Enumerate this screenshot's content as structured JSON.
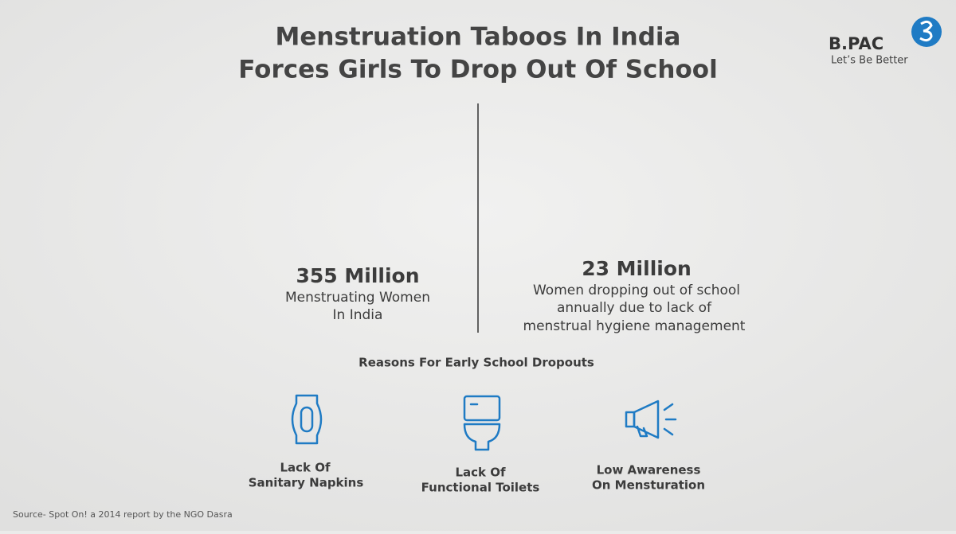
{
  "header": {
    "title_lines": [
      "Menstruation Taboos In India",
      "Forces Girls To Drop Out Of School"
    ]
  },
  "logo": {
    "name": "B.PAC",
    "tagline": "Let’s Be Better"
  },
  "stats": [
    {
      "value": 355,
      "label": "355 Million",
      "description_lines": [
        "Menstruating Women",
        "In India"
      ]
    },
    {
      "value": 23,
      "label": "23 Million",
      "description_lines": [
        "Women dropping out of school",
        "annually due to lack of",
        "menstrual hygiene management"
      ]
    }
  ],
  "reasons": {
    "title": "Reasons For Early School Dropouts",
    "items": [
      {
        "label_lines": [
          "Lack Of",
          "Sanitary Napkins"
        ]
      },
      {
        "label_lines": [
          "Lack Of",
          "Functional Toilets"
        ]
      },
      {
        "label_lines": [
          "Low Awareness",
          "On Mensturation"
        ]
      }
    ]
  },
  "source": "Source- Spot On! a 2014 report by the NGO Dasra"
}
